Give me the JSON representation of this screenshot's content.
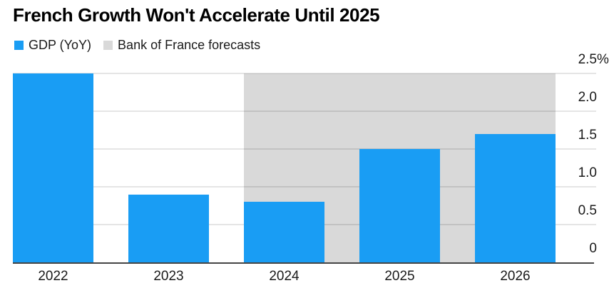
{
  "title": "French Growth Won't Accelerate Until 2025",
  "legend": [
    {
      "label": "GDP (YoY)",
      "color": "#199df4",
      "swatch_icon": "blue-square-icon"
    },
    {
      "label": "Bank of France forecasts",
      "color": "#d9d9d9",
      "swatch_icon": "gray-square-icon"
    }
  ],
  "colors": {
    "bar_blue": "#199df4",
    "forecast_band_gray": "#d9d9d9",
    "axis_line": "#454545",
    "text": "#1a1a1a"
  },
  "chart_data": {
    "type": "bar",
    "title": "French Growth Won't Accelerate Until 2025",
    "categories": [
      "2022",
      "2023",
      "2024",
      "2025",
      "2026"
    ],
    "series": [
      {
        "name": "GDP (YoY)",
        "values": [
          2.5,
          0.9,
          0.8,
          1.5,
          1.7
        ],
        "unit": "%"
      }
    ],
    "xlabel": "",
    "ylabel": "",
    "ylim": [
      0,
      2.5
    ],
    "yticks": [
      {
        "value": 2.5,
        "label": "2.5",
        "suffix": "%"
      },
      {
        "value": 2.0,
        "label": "2.0",
        "suffix": ""
      },
      {
        "value": 1.5,
        "label": "1.5",
        "suffix": ""
      },
      {
        "value": 1.0,
        "label": "1.0",
        "suffix": ""
      },
      {
        "value": 0.5,
        "label": "0.5",
        "suffix": ""
      },
      {
        "value": 0,
        "label": "0",
        "suffix": ""
      }
    ],
    "grid": true,
    "yaxis_position": "right",
    "legend_position": "top-left",
    "forecast_band": {
      "label": "Bank of France forecasts",
      "start_category": "2024",
      "end_category": "2026"
    }
  }
}
